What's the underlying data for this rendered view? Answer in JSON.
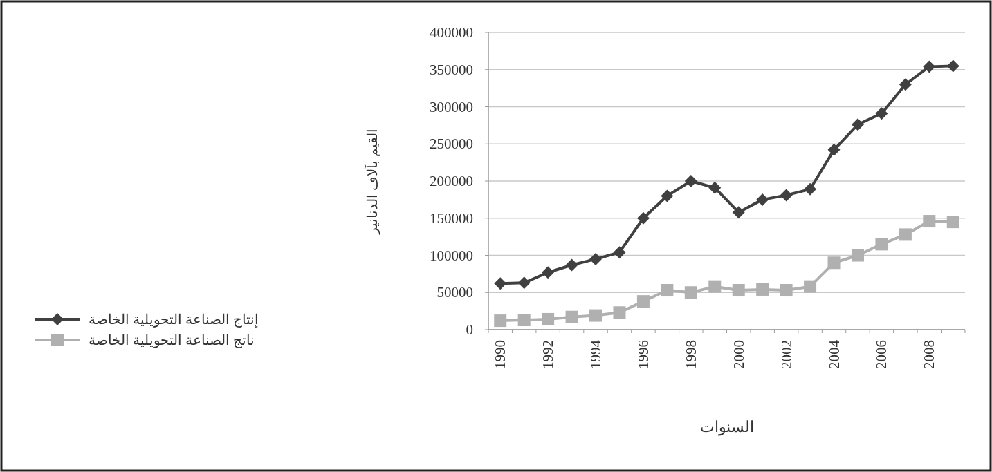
{
  "chart_data": {
    "type": "line",
    "xlabel": "السنوات",
    "ylabel": "القيم بآلاف الدنانير",
    "categories": [
      "1990",
      null,
      "1992",
      null,
      "1994",
      null,
      "1996",
      null,
      "1998",
      null,
      "2000",
      null,
      "2002",
      null,
      "2004",
      null,
      "2006",
      null,
      "2008",
      null
    ],
    "series": [
      {
        "name": "إنتاج الصناعة التحويلية الخاصة",
        "color": "#404040",
        "marker": "diamond",
        "values": [
          62000,
          63000,
          77000,
          87000,
          95000,
          104000,
          150000,
          180000,
          200000,
          191000,
          158000,
          175000,
          181000,
          189000,
          242000,
          276000,
          291000,
          330000,
          354000,
          355000
        ]
      },
      {
        "name": "ناتج الصناعة التحويلية الخاصة",
        "color": "#b0b0b0",
        "marker": "square",
        "values": [
          12000,
          13000,
          14000,
          17000,
          19000,
          23000,
          38000,
          53000,
          50000,
          58000,
          53000,
          54000,
          53000,
          58000,
          90000,
          100000,
          115000,
          128000,
          146000,
          145000
        ]
      }
    ],
    "ylim": [
      0,
      400000
    ],
    "yticks": [
      0,
      50000,
      100000,
      150000,
      200000,
      250000,
      300000,
      350000,
      400000
    ],
    "grid": "y",
    "legend": "left"
  }
}
